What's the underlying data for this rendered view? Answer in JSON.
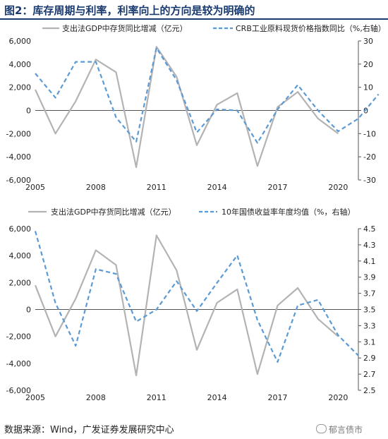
{
  "figure_title": "图2：库存周期与利率，利率向上的方向是较为明确的",
  "source_note": "数据来源：Wind，广发证券发展研究中心",
  "watermark": "郁言债市",
  "colors": {
    "primary": "#b3b3b3",
    "secondary": "#5b9bd5",
    "title": "#1a3a6e"
  },
  "chart_data": [
    {
      "type": "line",
      "x_ticks": [
        "2005",
        "2008",
        "2011",
        "2014",
        "2017",
        "2020"
      ],
      "x_range": [
        2005,
        2021
      ],
      "y_left": {
        "range": [
          -6000,
          6000
        ],
        "ticks": [
          -6000,
          -4000,
          -2000,
          0,
          2000,
          4000,
          6000
        ],
        "tick_labels": [
          "-6,000",
          "-4,000",
          "-2,000",
          "0",
          "2,000",
          "4,000",
          "6,000"
        ]
      },
      "y_right": {
        "range": [
          -30,
          30
        ],
        "ticks": [
          -30,
          -20,
          -10,
          0,
          10,
          20,
          30
        ],
        "tick_labels": [
          "-30",
          "-20",
          "-10",
          "0",
          "10",
          "20",
          "30"
        ]
      },
      "legend_placement": "top",
      "series": [
        {
          "name": "支出法GDP中存货同比增减（亿元）",
          "axis": "left",
          "style": "solid",
          "x": [
            2005,
            2006,
            2007,
            2008,
            2009,
            2010,
            2011,
            2012,
            2013,
            2014,
            2015,
            2016,
            2017,
            2018,
            2019,
            2020
          ],
          "y": [
            1800,
            -2000,
            800,
            4400,
            3300,
            -4900,
            5500,
            2900,
            -3000,
            500,
            1500,
            -4800,
            300,
            1600,
            -700,
            -2000
          ]
        },
        {
          "name": "CRB工业原料现货价格指数同比（%,右轴）",
          "axis": "right",
          "style": "dashed",
          "x": [
            2005,
            2006,
            2007,
            2008,
            2009,
            2010,
            2011,
            2012,
            2013,
            2014,
            2015,
            2016,
            2017,
            2018,
            2019,
            2020,
            2021,
            2022
          ],
          "y": [
            16,
            5.5,
            21,
            21,
            -3,
            -13.5,
            27,
            13,
            -9.5,
            0.5,
            0,
            -14,
            0.5,
            11,
            0,
            -9,
            -3.5,
            7
          ]
        }
      ]
    },
    {
      "type": "line",
      "x_ticks": [
        "2005",
        "2008",
        "2011",
        "2014",
        "2017",
        "2020"
      ],
      "x_range": [
        2005,
        2021
      ],
      "y_left": {
        "range": [
          -6000,
          6000
        ],
        "ticks": [
          -6000,
          -4000,
          -2000,
          0,
          2000,
          4000,
          6000
        ],
        "tick_labels": [
          "-6,000",
          "-4,000",
          "-2,000",
          "0",
          "2,000",
          "4,000",
          "6,000"
        ]
      },
      "y_right": {
        "range": [
          2.5,
          4.5
        ],
        "ticks": [
          2.5,
          2.7,
          2.9,
          3.1,
          3.3,
          3.5,
          3.7,
          3.9,
          4.1,
          4.3,
          4.5
        ],
        "tick_labels": [
          "2.5",
          "2.7",
          "2.9",
          "3.1",
          "3.3",
          "3.5",
          "3.7",
          "3.9",
          "4.1",
          "4.3",
          "4.5"
        ]
      },
      "legend_placement": "top",
      "series": [
        {
          "name": "支出法GDP中存货同比增减（亿元）",
          "axis": "left",
          "style": "solid",
          "x": [
            2005,
            2006,
            2007,
            2008,
            2009,
            2010,
            2011,
            2012,
            2013,
            2014,
            2015,
            2016,
            2017,
            2018,
            2019,
            2020
          ],
          "y": [
            1800,
            -2000,
            800,
            4400,
            3300,
            -4900,
            5500,
            2900,
            -3000,
            500,
            1500,
            -4800,
            300,
            1600,
            -700,
            -2000
          ]
        },
        {
          "name": "10年国债收益率年度均值（%，右轴）",
          "axis": "right",
          "style": "dashed",
          "x": [
            2005,
            2006,
            2007,
            2008,
            2009,
            2010,
            2011,
            2012,
            2013,
            2014,
            2015,
            2016,
            2017,
            2018,
            2019,
            2020,
            2021
          ],
          "y": [
            4.47,
            3.58,
            3.05,
            4.0,
            3.94,
            3.35,
            3.5,
            3.85,
            3.48,
            3.83,
            4.17,
            3.37,
            2.85,
            3.55,
            3.62,
            3.18,
            2.93
          ]
        }
      ]
    }
  ]
}
